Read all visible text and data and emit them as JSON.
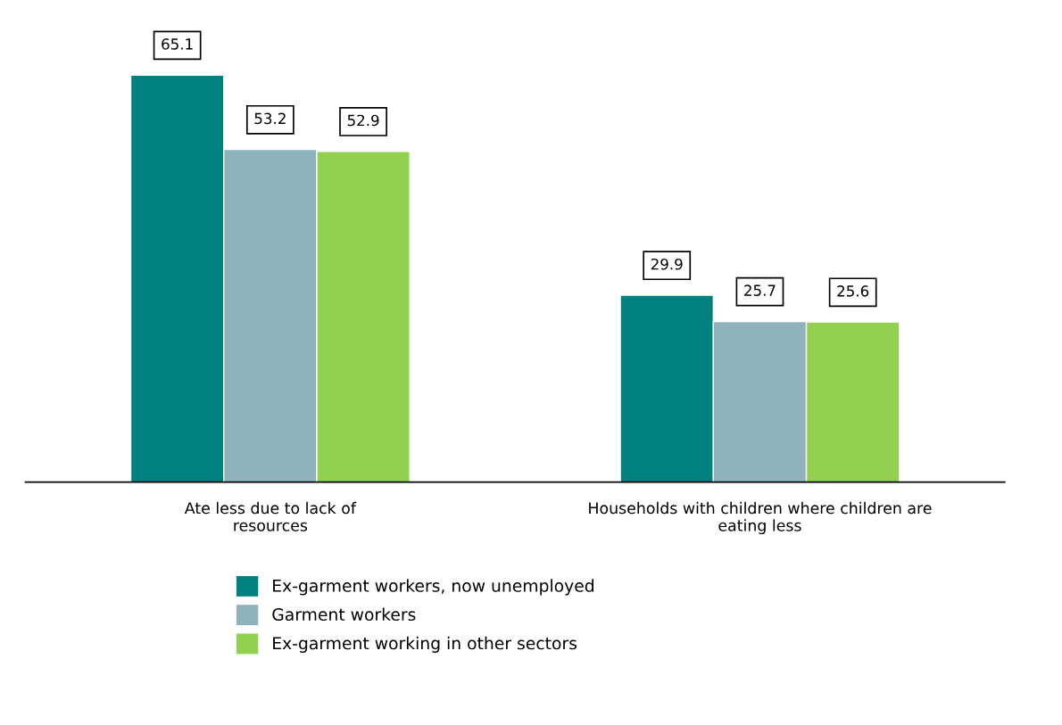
{
  "chart_data": {
    "type": "bar",
    "categories": [
      "Ate less due to lack of\nresources",
      "Households with children where children are\neating less"
    ],
    "series": [
      {
        "name": "Ex-garment workers, now unemployed",
        "color": "#00807f",
        "values": [
          65.1,
          29.9
        ]
      },
      {
        "name": "Garment workers",
        "color": "#8fb3bb",
        "values": [
          53.2,
          25.7
        ]
      },
      {
        "name": "Ex-garment working in other sectors",
        "color": "#92d050",
        "values": [
          52.9,
          25.6
        ]
      }
    ],
    "data_labels": true,
    "legend": "bottom",
    "grid": false
  }
}
